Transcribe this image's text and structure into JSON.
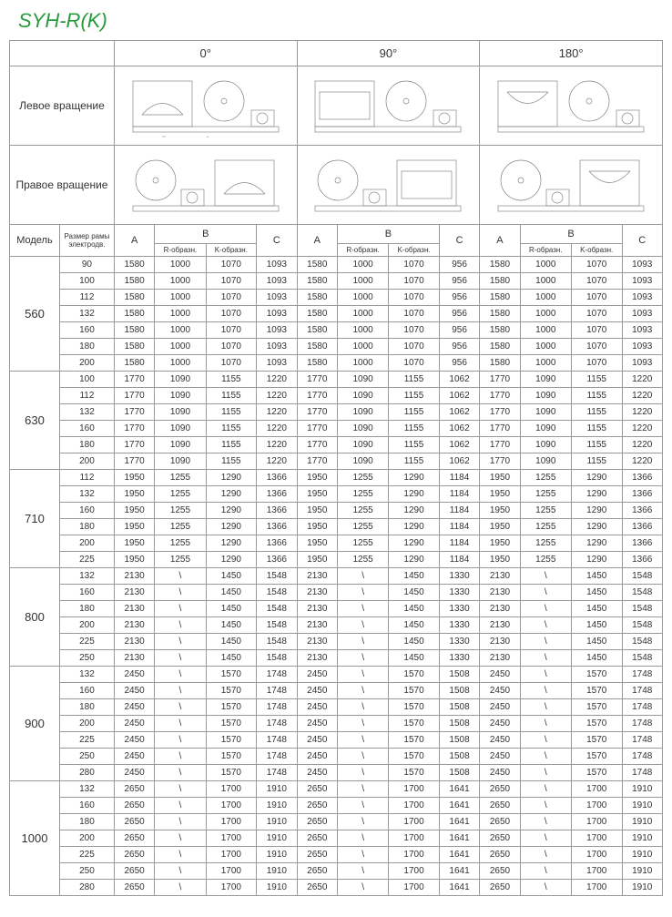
{
  "title": "SYH-R(K)",
  "angles": [
    "0°",
    "90°",
    "180°"
  ],
  "rotation_labels": {
    "left": "Левое вращение",
    "right": "Правое вращение"
  },
  "col_headers": {
    "model": "Модель",
    "frame": "Размер рамы электродв.",
    "A": "A",
    "B": "B",
    "B_R": "R-образн.",
    "B_K": "K-образн.",
    "C": "C"
  },
  "models": [
    {
      "model": "560",
      "rows": [
        {
          "frame": "90",
          "g0": [
            "1580",
            "1000",
            "1070",
            "1093"
          ],
          "g90": [
            "1580",
            "1000",
            "1070",
            "956"
          ],
          "g180": [
            "1580",
            "1000",
            "1070",
            "1093"
          ]
        },
        {
          "frame": "100",
          "g0": [
            "1580",
            "1000",
            "1070",
            "1093"
          ],
          "g90": [
            "1580",
            "1000",
            "1070",
            "956"
          ],
          "g180": [
            "1580",
            "1000",
            "1070",
            "1093"
          ]
        },
        {
          "frame": "112",
          "g0": [
            "1580",
            "1000",
            "1070",
            "1093"
          ],
          "g90": [
            "1580",
            "1000",
            "1070",
            "956"
          ],
          "g180": [
            "1580",
            "1000",
            "1070",
            "1093"
          ]
        },
        {
          "frame": "132",
          "g0": [
            "1580",
            "1000",
            "1070",
            "1093"
          ],
          "g90": [
            "1580",
            "1000",
            "1070",
            "956"
          ],
          "g180": [
            "1580",
            "1000",
            "1070",
            "1093"
          ]
        },
        {
          "frame": "160",
          "g0": [
            "1580",
            "1000",
            "1070",
            "1093"
          ],
          "g90": [
            "1580",
            "1000",
            "1070",
            "956"
          ],
          "g180": [
            "1580",
            "1000",
            "1070",
            "1093"
          ]
        },
        {
          "frame": "180",
          "g0": [
            "1580",
            "1000",
            "1070",
            "1093"
          ],
          "g90": [
            "1580",
            "1000",
            "1070",
            "956"
          ],
          "g180": [
            "1580",
            "1000",
            "1070",
            "1093"
          ]
        },
        {
          "frame": "200",
          "g0": [
            "1580",
            "1000",
            "1070",
            "1093"
          ],
          "g90": [
            "1580",
            "1000",
            "1070",
            "956"
          ],
          "g180": [
            "1580",
            "1000",
            "1070",
            "1093"
          ]
        }
      ]
    },
    {
      "model": "630",
      "rows": [
        {
          "frame": "100",
          "g0": [
            "1770",
            "1090",
            "1155",
            "1220"
          ],
          "g90": [
            "1770",
            "1090",
            "1155",
            "1062"
          ],
          "g180": [
            "1770",
            "1090",
            "1155",
            "1220"
          ]
        },
        {
          "frame": "112",
          "g0": [
            "1770",
            "1090",
            "1155",
            "1220"
          ],
          "g90": [
            "1770",
            "1090",
            "1155",
            "1062"
          ],
          "g180": [
            "1770",
            "1090",
            "1155",
            "1220"
          ]
        },
        {
          "frame": "132",
          "g0": [
            "1770",
            "1090",
            "1155",
            "1220"
          ],
          "g90": [
            "1770",
            "1090",
            "1155",
            "1062"
          ],
          "g180": [
            "1770",
            "1090",
            "1155",
            "1220"
          ]
        },
        {
          "frame": "160",
          "g0": [
            "1770",
            "1090",
            "1155",
            "1220"
          ],
          "g90": [
            "1770",
            "1090",
            "1155",
            "1062"
          ],
          "g180": [
            "1770",
            "1090",
            "1155",
            "1220"
          ]
        },
        {
          "frame": "180",
          "g0": [
            "1770",
            "1090",
            "1155",
            "1220"
          ],
          "g90": [
            "1770",
            "1090",
            "1155",
            "1062"
          ],
          "g180": [
            "1770",
            "1090",
            "1155",
            "1220"
          ]
        },
        {
          "frame": "200",
          "g0": [
            "1770",
            "1090",
            "1155",
            "1220"
          ],
          "g90": [
            "1770",
            "1090",
            "1155",
            "1062"
          ],
          "g180": [
            "1770",
            "1090",
            "1155",
            "1220"
          ]
        }
      ]
    },
    {
      "model": "710",
      "rows": [
        {
          "frame": "112",
          "g0": [
            "1950",
            "1255",
            "1290",
            "1366"
          ],
          "g90": [
            "1950",
            "1255",
            "1290",
            "1184"
          ],
          "g180": [
            "1950",
            "1255",
            "1290",
            "1366"
          ]
        },
        {
          "frame": "132",
          "g0": [
            "1950",
            "1255",
            "1290",
            "1366"
          ],
          "g90": [
            "1950",
            "1255",
            "1290",
            "1184"
          ],
          "g180": [
            "1950",
            "1255",
            "1290",
            "1366"
          ]
        },
        {
          "frame": "160",
          "g0": [
            "1950",
            "1255",
            "1290",
            "1366"
          ],
          "g90": [
            "1950",
            "1255",
            "1290",
            "1184"
          ],
          "g180": [
            "1950",
            "1255",
            "1290",
            "1366"
          ]
        },
        {
          "frame": "180",
          "g0": [
            "1950",
            "1255",
            "1290",
            "1366"
          ],
          "g90": [
            "1950",
            "1255",
            "1290",
            "1184"
          ],
          "g180": [
            "1950",
            "1255",
            "1290",
            "1366"
          ]
        },
        {
          "frame": "200",
          "g0": [
            "1950",
            "1255",
            "1290",
            "1366"
          ],
          "g90": [
            "1950",
            "1255",
            "1290",
            "1184"
          ],
          "g180": [
            "1950",
            "1255",
            "1290",
            "1366"
          ]
        },
        {
          "frame": "225",
          "g0": [
            "1950",
            "1255",
            "1290",
            "1366"
          ],
          "g90": [
            "1950",
            "1255",
            "1290",
            "1184"
          ],
          "g180": [
            "1950",
            "1255",
            "1290",
            "1366"
          ]
        }
      ]
    },
    {
      "model": "800",
      "rows": [
        {
          "frame": "132",
          "g0": [
            "2130",
            "\\",
            "1450",
            "1548"
          ],
          "g90": [
            "2130",
            "\\",
            "1450",
            "1330"
          ],
          "g180": [
            "2130",
            "\\",
            "1450",
            "1548"
          ]
        },
        {
          "frame": "160",
          "g0": [
            "2130",
            "\\",
            "1450",
            "1548"
          ],
          "g90": [
            "2130",
            "\\",
            "1450",
            "1330"
          ],
          "g180": [
            "2130",
            "\\",
            "1450",
            "1548"
          ]
        },
        {
          "frame": "180",
          "g0": [
            "2130",
            "\\",
            "1450",
            "1548"
          ],
          "g90": [
            "2130",
            "\\",
            "1450",
            "1330"
          ],
          "g180": [
            "2130",
            "\\",
            "1450",
            "1548"
          ]
        },
        {
          "frame": "200",
          "g0": [
            "2130",
            "\\",
            "1450",
            "1548"
          ],
          "g90": [
            "2130",
            "\\",
            "1450",
            "1330"
          ],
          "g180": [
            "2130",
            "\\",
            "1450",
            "1548"
          ]
        },
        {
          "frame": "225",
          "g0": [
            "2130",
            "\\",
            "1450",
            "1548"
          ],
          "g90": [
            "2130",
            "\\",
            "1450",
            "1330"
          ],
          "g180": [
            "2130",
            "\\",
            "1450",
            "1548"
          ]
        },
        {
          "frame": "250",
          "g0": [
            "2130",
            "\\",
            "1450",
            "1548"
          ],
          "g90": [
            "2130",
            "\\",
            "1450",
            "1330"
          ],
          "g180": [
            "2130",
            "\\",
            "1450",
            "1548"
          ]
        }
      ]
    },
    {
      "model": "900",
      "rows": [
        {
          "frame": "132",
          "g0": [
            "2450",
            "\\",
            "1570",
            "1748"
          ],
          "g90": [
            "2450",
            "\\",
            "1570",
            "1508"
          ],
          "g180": [
            "2450",
            "\\",
            "1570",
            "1748"
          ]
        },
        {
          "frame": "160",
          "g0": [
            "2450",
            "\\",
            "1570",
            "1748"
          ],
          "g90": [
            "2450",
            "\\",
            "1570",
            "1508"
          ],
          "g180": [
            "2450",
            "\\",
            "1570",
            "1748"
          ]
        },
        {
          "frame": "180",
          "g0": [
            "2450",
            "\\",
            "1570",
            "1748"
          ],
          "g90": [
            "2450",
            "\\",
            "1570",
            "1508"
          ],
          "g180": [
            "2450",
            "\\",
            "1570",
            "1748"
          ]
        },
        {
          "frame": "200",
          "g0": [
            "2450",
            "\\",
            "1570",
            "1748"
          ],
          "g90": [
            "2450",
            "\\",
            "1570",
            "1508"
          ],
          "g180": [
            "2450",
            "\\",
            "1570",
            "1748"
          ]
        },
        {
          "frame": "225",
          "g0": [
            "2450",
            "\\",
            "1570",
            "1748"
          ],
          "g90": [
            "2450",
            "\\",
            "1570",
            "1508"
          ],
          "g180": [
            "2450",
            "\\",
            "1570",
            "1748"
          ]
        },
        {
          "frame": "250",
          "g0": [
            "2450",
            "\\",
            "1570",
            "1748"
          ],
          "g90": [
            "2450",
            "\\",
            "1570",
            "1508"
          ],
          "g180": [
            "2450",
            "\\",
            "1570",
            "1748"
          ]
        },
        {
          "frame": "280",
          "g0": [
            "2450",
            "\\",
            "1570",
            "1748"
          ],
          "g90": [
            "2450",
            "\\",
            "1570",
            "1508"
          ],
          "g180": [
            "2450",
            "\\",
            "1570",
            "1748"
          ]
        }
      ]
    },
    {
      "model": "1000",
      "rows": [
        {
          "frame": "132",
          "g0": [
            "2650",
            "\\",
            "1700",
            "1910"
          ],
          "g90": [
            "2650",
            "\\",
            "1700",
            "1641"
          ],
          "g180": [
            "2650",
            "\\",
            "1700",
            "1910"
          ]
        },
        {
          "frame": "160",
          "g0": [
            "2650",
            "\\",
            "1700",
            "1910"
          ],
          "g90": [
            "2650",
            "\\",
            "1700",
            "1641"
          ],
          "g180": [
            "2650",
            "\\",
            "1700",
            "1910"
          ]
        },
        {
          "frame": "180",
          "g0": [
            "2650",
            "\\",
            "1700",
            "1910"
          ],
          "g90": [
            "2650",
            "\\",
            "1700",
            "1641"
          ],
          "g180": [
            "2650",
            "\\",
            "1700",
            "1910"
          ]
        },
        {
          "frame": "200",
          "g0": [
            "2650",
            "\\",
            "1700",
            "1910"
          ],
          "g90": [
            "2650",
            "\\",
            "1700",
            "1641"
          ],
          "g180": [
            "2650",
            "\\",
            "1700",
            "1910"
          ]
        },
        {
          "frame": "225",
          "g0": [
            "2650",
            "\\",
            "1700",
            "1910"
          ],
          "g90": [
            "2650",
            "\\",
            "1700",
            "1641"
          ],
          "g180": [
            "2650",
            "\\",
            "1700",
            "1910"
          ]
        },
        {
          "frame": "250",
          "g0": [
            "2650",
            "\\",
            "1700",
            "1910"
          ],
          "g90": [
            "2650",
            "\\",
            "1700",
            "1641"
          ],
          "g180": [
            "2650",
            "\\",
            "1700",
            "1910"
          ]
        },
        {
          "frame": "280",
          "g0": [
            "2650",
            "\\",
            "1700",
            "1910"
          ],
          "g90": [
            "2650",
            "\\",
            "1700",
            "1641"
          ],
          "g180": [
            "2650",
            "\\",
            "1700",
            "1910"
          ]
        }
      ]
    }
  ]
}
